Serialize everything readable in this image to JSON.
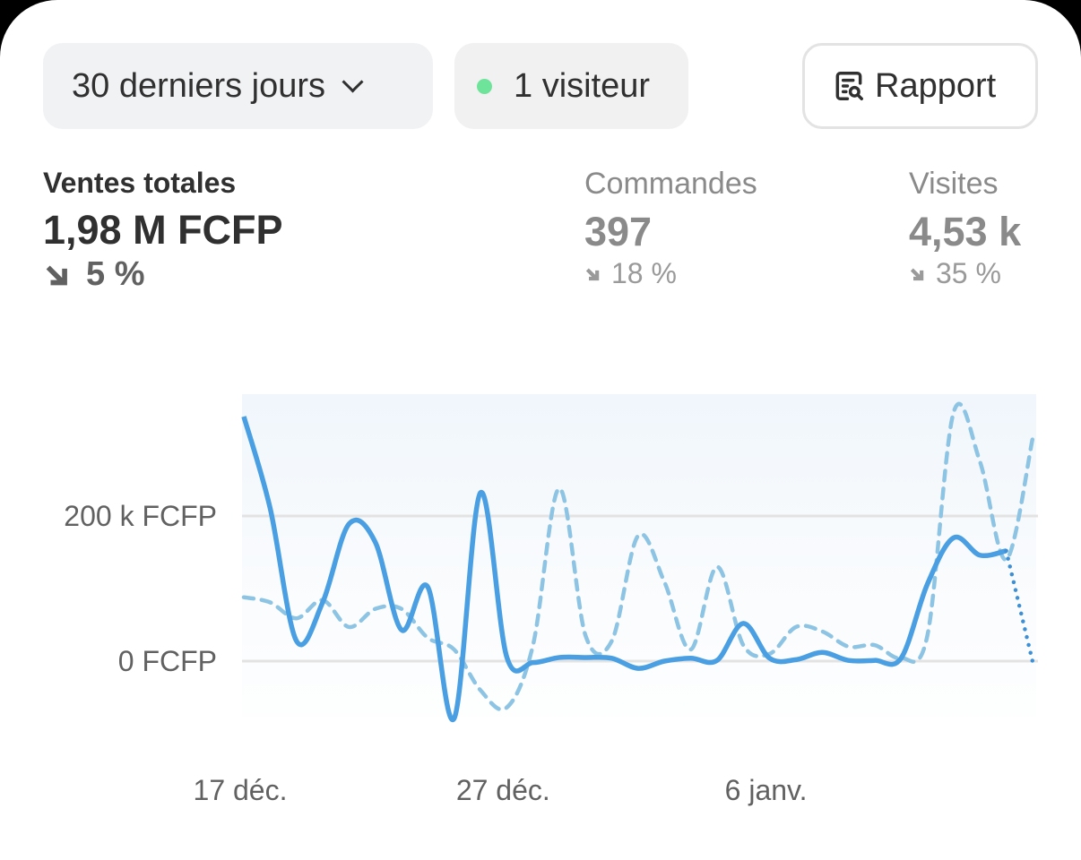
{
  "toolbar": {
    "date_range": "30 derniers jours",
    "live_visitors": "1 visiteur",
    "live_color": "#6ee39a",
    "report_label": "Rapport"
  },
  "metrics": [
    {
      "label": "Ventes totales",
      "value": "1,98 M FCFP",
      "delta": "5 %",
      "direction": "down"
    },
    {
      "label": "Commandes",
      "value": "397",
      "delta": "18 %",
      "direction": "down"
    },
    {
      "label": "Visites",
      "value": "4,53 k",
      "delta": "35 %",
      "direction": "down"
    }
  ],
  "chart_data": {
    "type": "line",
    "y_ticks": [
      {
        "value": 0,
        "label": "0 FCFP"
      },
      {
        "value": 200,
        "label": "200 k FCFP"
      }
    ],
    "y_unit": "k FCFP",
    "x_ticks": [
      {
        "index": 0,
        "label": "17 déc."
      },
      {
        "index": 10,
        "label": "27 déc."
      },
      {
        "index": 20,
        "label": "6 janv."
      }
    ],
    "grid": true,
    "series": [
      {
        "style": "solid",
        "color": "#4a9fe3",
        "values": [
          337,
          211,
          28,
          81,
          189,
          164,
          43,
          102,
          -79,
          232,
          6,
          -2,
          5,
          5,
          4,
          -10,
          0,
          4,
          1,
          52,
          4,
          2,
          12,
          1,
          1,
          4,
          106,
          170,
          146,
          152
        ],
        "projected_end": 0
      },
      {
        "style": "dashed",
        "color": "#8ec4e3",
        "values": [
          88,
          81,
          59,
          84,
          47,
          72,
          72,
          32,
          16,
          -40,
          -64,
          22,
          238,
          35,
          28,
          173,
          109,
          16,
          130,
          22,
          10,
          47,
          41,
          20,
          22,
          4,
          35,
          343,
          275,
          140,
          306
        ]
      }
    ]
  }
}
